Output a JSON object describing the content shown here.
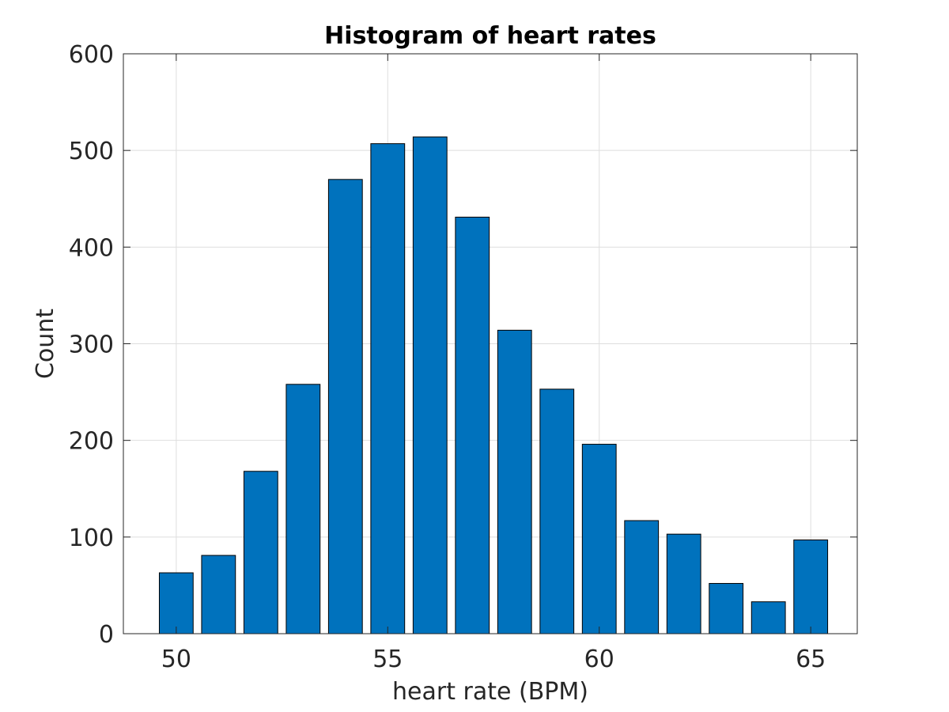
{
  "chart_data": {
    "type": "bar",
    "title": "Histogram of heart rates",
    "xlabel": "heart rate (BPM)",
    "ylabel": "Count",
    "x": [
      50,
      51,
      52,
      53,
      54,
      55,
      56,
      57,
      58,
      59,
      60,
      61,
      62,
      63,
      64,
      65
    ],
    "values": [
      63,
      81,
      168,
      258,
      470,
      507,
      514,
      431,
      314,
      253,
      196,
      117,
      103,
      52,
      33,
      97
    ],
    "xlim": [
      48.75,
      66.1
    ],
    "ylim": [
      0,
      600
    ],
    "xticks": [
      50,
      55,
      60,
      65
    ],
    "yticks": [
      0,
      100,
      200,
      300,
      400,
      500,
      600
    ],
    "xtick_labels": [
      "50",
      "55",
      "60",
      "65"
    ],
    "ytick_labels": [
      "0",
      "100",
      "200",
      "300",
      "400",
      "500",
      "600"
    ],
    "bar_width": 0.8,
    "grid": true,
    "colors": {
      "bar_fill": "#0072BD",
      "bar_edge": "#000000",
      "grid": "#dedede",
      "axis": "#262626"
    }
  }
}
